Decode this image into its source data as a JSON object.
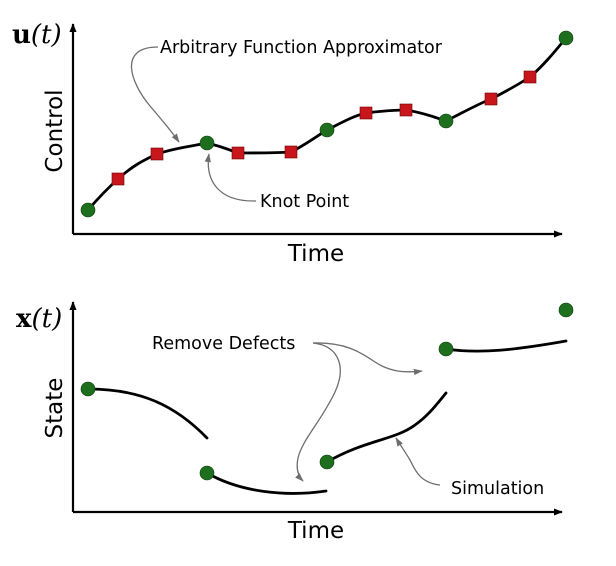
{
  "colors": {
    "knot": "#1d6e1d",
    "collocation": "#c8161d",
    "curve": "#000000",
    "leader": "#6e6e6e"
  },
  "top_panel": {
    "y_label": "Control",
    "x_label": "Time",
    "y_symbol_bold": "u",
    "y_symbol_arg": "(t)",
    "annotation_approximator": "Arbitrary Function Approximator",
    "annotation_knot": "Knot Point"
  },
  "bottom_panel": {
    "y_label": "State",
    "x_label": "Time",
    "y_symbol_bold": "x",
    "y_symbol_arg": "(t)",
    "annotation_defects": "Remove Defects",
    "annotation_simulation": "Simulation"
  }
}
